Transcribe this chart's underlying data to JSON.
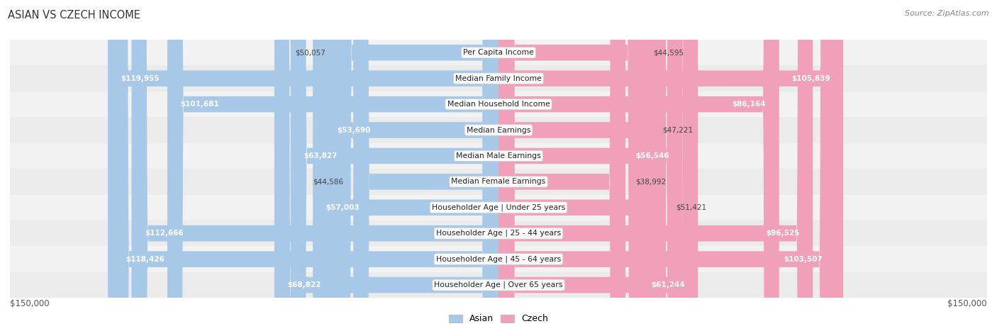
{
  "title": "Asian vs Czech Income",
  "source": "Source: ZipAtlas.com",
  "max_value": 150000,
  "asian_color_light": "#a8c8e8",
  "czech_color_light": "#f0a0b8",
  "row_bg_odd": "#f0f0f0",
  "row_bg_even": "#e8e8e8",
  "categories": [
    "Per Capita Income",
    "Median Family Income",
    "Median Household Income",
    "Median Earnings",
    "Median Male Earnings",
    "Median Female Earnings",
    "Householder Age | Under 25 years",
    "Householder Age | 25 - 44 years",
    "Householder Age | 45 - 64 years",
    "Householder Age | Over 65 years"
  ],
  "asian_values": [
    50057,
    119955,
    101681,
    53690,
    63827,
    44586,
    57003,
    112666,
    118426,
    68822
  ],
  "czech_values": [
    44595,
    105839,
    86164,
    47221,
    56546,
    38992,
    51421,
    96525,
    103507,
    61244
  ],
  "asian_labels": [
    "$50,057",
    "$119,955",
    "$101,681",
    "$53,690",
    "$63,827",
    "$44,586",
    "$57,003",
    "$112,666",
    "$118,426",
    "$68,822"
  ],
  "czech_labels": [
    "$44,595",
    "$105,839",
    "$86,164",
    "$47,221",
    "$56,546",
    "$38,992",
    "$51,421",
    "$96,525",
    "$103,507",
    "$61,244"
  ],
  "x_label_left": "$150,000",
  "x_label_right": "$150,000",
  "inside_threshold": 52000
}
